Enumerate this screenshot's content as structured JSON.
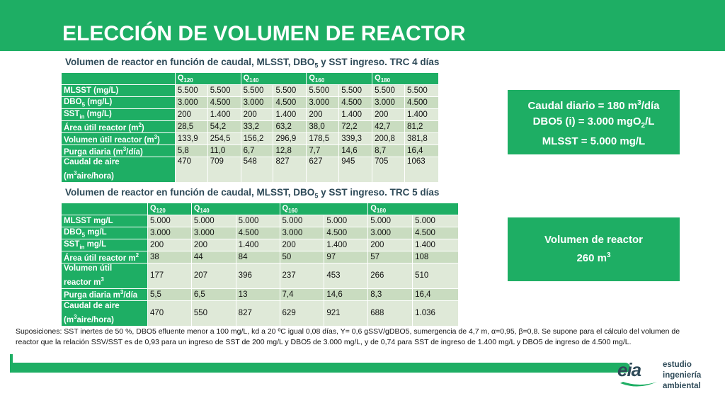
{
  "title": "ELECCIÓN DE VOLUMEN DE REACTOR",
  "table1": {
    "caption": [
      "Volumen de reactor en función de caudal, MLSST, DBO",
      "5",
      " y SST ingreso. TRC 4 días"
    ],
    "headers": [
      "Q",
      "120",
      "Q",
      "140",
      "Q",
      "160",
      "Q",
      "180"
    ],
    "rows": [
      {
        "label": [
          "MLSST (mg/L)"
        ],
        "values": [
          "5.500",
          "5.500",
          "5.500",
          "5.500",
          "5.500",
          "5.500",
          "5.500",
          "5.500"
        ]
      },
      {
        "label": [
          "DBO",
          "5",
          " (mg/L)"
        ],
        "values": [
          "3.000",
          "4.500",
          "3.000",
          "4.500",
          "3.000",
          "4.500",
          "3.000",
          "4.500"
        ]
      },
      {
        "label": [
          "SST",
          "in",
          " (mg/L)"
        ],
        "values": [
          "200",
          "1.400",
          "200",
          "1.400",
          "200",
          "1.400",
          "200",
          "1.400"
        ]
      },
      {
        "label": [
          "Área útil reactor (m",
          "2",
          ")"
        ],
        "values": [
          "28,5",
          "54,2",
          "33,2",
          "63,2",
          "38,0",
          "72,2",
          "42,7",
          "81,2"
        ]
      },
      {
        "label": [
          "Volumen útil reactor (m",
          "3",
          ")"
        ],
        "values": [
          "133,9",
          "254,5",
          "156,2",
          "296,9",
          "178,5",
          "339,3",
          "200,8",
          "381,8"
        ]
      },
      {
        "label": [
          "Purga diaria (m",
          "3",
          "/día)"
        ],
        "values": [
          "5,8",
          "11,0",
          "6,7",
          "12,8",
          "7,7",
          "14,6",
          "8,7",
          "16,4"
        ]
      },
      {
        "label": [
          "Caudal de aire",
          "(m",
          "3",
          "aire/hora)"
        ],
        "values": [
          "470",
          "709",
          "548",
          "827",
          "627",
          "945",
          "705",
          "1063"
        ]
      }
    ]
  },
  "table2": {
    "caption": [
      "Volumen de reactor en función de caudal, MLSST, DBO",
      "5",
      " y SST ingreso. TRC 5 días"
    ],
    "headers": [
      "Q",
      "120",
      "Q",
      "140",
      "Q",
      "160",
      "Q",
      "180"
    ],
    "rows": [
      {
        "label": [
          "MLSST mg/L"
        ],
        "values": [
          "5.000",
          "5.000",
          "5.000",
          "5.000",
          "5.000",
          "5.000",
          "5.000"
        ]
      },
      {
        "label": [
          "DBO",
          "5",
          " mg/L"
        ],
        "values": [
          "3.000",
          "3.000",
          "4.500",
          "3.000",
          "4.500",
          "3.000",
          "4.500"
        ]
      },
      {
        "label": [
          "SST",
          "in",
          " mg/L"
        ],
        "values": [
          "200",
          "200",
          "1.400",
          "200",
          "1.400",
          "200",
          "1.400"
        ]
      },
      {
        "label": [
          "Área útil reactor m",
          "2",
          ""
        ],
        "values": [
          "38",
          "44",
          "84",
          "50",
          "97",
          "57",
          "108"
        ]
      },
      {
        "label": [
          "Volumen útil",
          "reactor m",
          "3",
          ""
        ],
        "values": [
          "177",
          "207",
          "396",
          "237",
          "453",
          "266",
          "510"
        ]
      },
      {
        "label": [
          "Purga diaria  m",
          "3",
          "/día"
        ],
        "values": [
          "5,5",
          "6,5",
          "13",
          "7,4",
          "14,6",
          "8,3",
          "16,4"
        ]
      },
      {
        "label": [
          "Caudal de aire",
          "(m",
          "3",
          "aire/hora)"
        ],
        "values": [
          "470",
          "550",
          "827",
          "629",
          "921",
          "688",
          "1.036"
        ]
      }
    ]
  },
  "box1": {
    "line1": [
      "Caudal diario = 180 m",
      "3",
      "/día"
    ],
    "line2": [
      "DBO5 (i) = 3.000 mgO",
      "2",
      "/L"
    ],
    "line3": "MLSST = 5.000 mg/L"
  },
  "box2": {
    "line1": "Volumen de reactor",
    "line2": [
      "260 m",
      "3"
    ]
  },
  "note": "Suposiciones:  SST inertes de 50 %, DBO5 efluente menor a 100 mg/L, kd a 20 ºC igual 0,08 días, Y= 0,6 gSSV/gDBO5, sumergencia  de 4,7 m, α=0,95, β=0,8. Se supone para el cálculo del volumen de reactor que la relación SSV/SST es de 0,93 para un ingreso de SST de 200 mg/L y DBO5 de 3.000 mg/L, y de 0,74 para SST de ingreso de 1.400 mg/L y DBO5 de ingreso de 4.500 mg/L.",
  "logo": {
    "mark": "eia",
    "line1": "estudio",
    "line2": "ingeniería",
    "line3": "ambiental"
  },
  "colors": {
    "accent": "#1eae64",
    "text_dark": "#2e4a58",
    "cell_light": "#dfe9d8",
    "cell_dark": "#c9dcc0"
  }
}
